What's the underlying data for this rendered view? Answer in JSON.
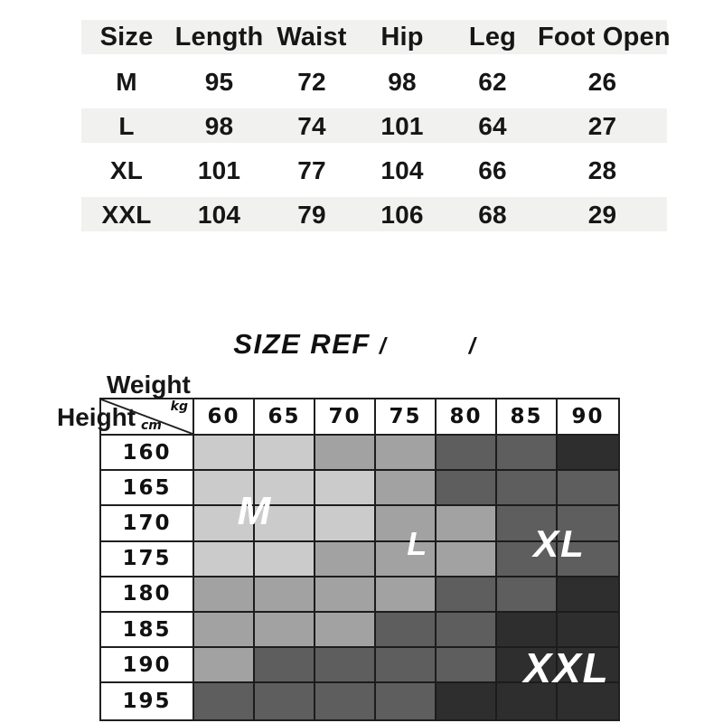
{
  "colors": {
    "stripe": "#f1f1f0",
    "grid_line": "#1f1f1f",
    "zone_label_text": "#ffffff"
  },
  "title": {
    "text": "SIZE REF",
    "slash_left": "/",
    "slash_right": "/"
  },
  "chart_data": [
    {
      "type": "table",
      "title": "",
      "columns": [
        "Size",
        "Length",
        "Waist",
        "Hip",
        "Leg",
        "Foot Open"
      ],
      "rows": [
        [
          "M",
          "95",
          "72",
          "98",
          "62",
          "26"
        ],
        [
          "L",
          "98",
          "74",
          "101",
          "64",
          "27"
        ],
        [
          "XL",
          "101",
          "77",
          "104",
          "66",
          "28"
        ],
        [
          "XXL",
          "104",
          "79",
          "106",
          "68",
          "29"
        ]
      ]
    },
    {
      "type": "heatmap",
      "title": "SIZE REF",
      "x_axis_name": "Weight",
      "x_axis_unit": "kg",
      "y_axis_name": "Height",
      "y_axis_unit": "cm",
      "x": [
        "60",
        "65",
        "70",
        "75",
        "80",
        "85",
        "90"
      ],
      "y": [
        "160",
        "165",
        "170",
        "175",
        "180",
        "185",
        "190",
        "195"
      ],
      "legend": {
        "M": "#cbcbcb",
        "L": "#a2a2a2",
        "XL": "#5e5e5e",
        "XXL": "#2e2e2e"
      },
      "grid": [
        [
          "M",
          "M",
          "L",
          "L",
          "XL",
          "XL",
          "XXL"
        ],
        [
          "M",
          "M",
          "M",
          "L",
          "XL",
          "XL",
          "XL"
        ],
        [
          "M",
          "M",
          "M",
          "L",
          "L",
          "XL",
          "XL"
        ],
        [
          "M",
          "M",
          "L",
          "L",
          "L",
          "XL",
          "XL"
        ],
        [
          "L",
          "L",
          "L",
          "L",
          "XL",
          "XL",
          "XXL"
        ],
        [
          "L",
          "L",
          "L",
          "XL",
          "XL",
          "XXL",
          "XXL"
        ],
        [
          "L",
          "XL",
          "XL",
          "XL",
          "XL",
          "XXL",
          "XXL"
        ],
        [
          "XL",
          "XL",
          "XL",
          "XL",
          "XXL",
          "XXL",
          "XXL"
        ]
      ],
      "zone_labels": [
        {
          "text": "M",
          "cx": 1.0,
          "cy": 2.15,
          "size": 44
        },
        {
          "text": "L",
          "cx": 3.69,
          "cy": 3.07,
          "size": 36
        },
        {
          "text": "XL",
          "cx": 6.03,
          "cy": 3.07,
          "size": 42
        },
        {
          "text": "XXL",
          "cx": 6.15,
          "cy": 6.55,
          "size": 46
        }
      ]
    }
  ]
}
